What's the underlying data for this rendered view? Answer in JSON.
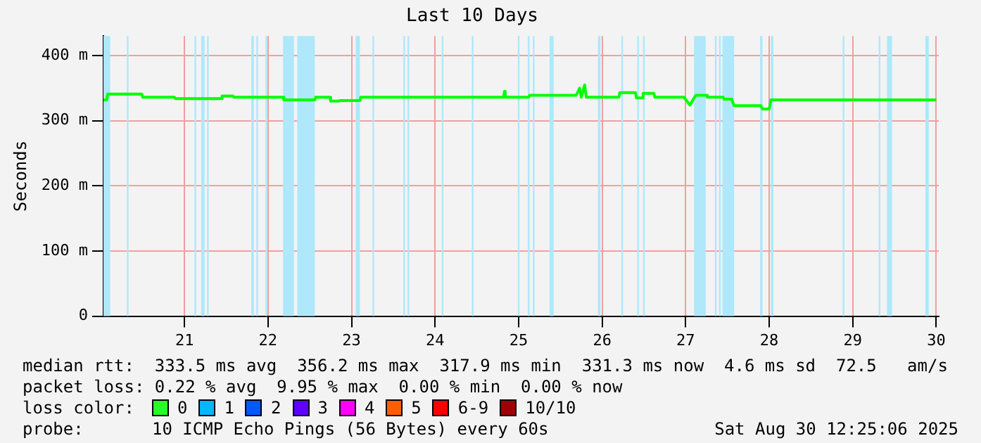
{
  "chart_data": {
    "type": "line",
    "title": "Last 10 Days",
    "ylabel": "Seconds",
    "xlim": [
      20.03,
      30.03
    ],
    "xticks": [
      21,
      22,
      23,
      24,
      25,
      26,
      27,
      28,
      29,
      30
    ],
    "ylim": [
      0,
      430
    ],
    "yticks": [
      0,
      {
        "value": 100,
        "label": "100 m"
      },
      {
        "value": 200,
        "label": "200 m"
      },
      {
        "value": 300,
        "label": "300 m"
      },
      {
        "value": 400,
        "label": "400 m"
      }
    ],
    "grid": true,
    "legend": false,
    "marker": "none",
    "line_style": "solid",
    "series": [
      {
        "color": "#00ff00",
        "x": [
          20.03,
          20.07,
          20.08,
          20.49,
          20.5,
          20.88,
          20.89,
          21.44,
          21.45,
          21.58,
          21.59,
          22.18,
          22.19,
          22.56,
          22.57,
          22.74,
          22.75,
          22.85,
          22.86,
          23.1,
          23.11,
          24.82,
          24.83,
          24.84,
          25.12,
          25.13,
          25.69,
          25.73,
          25.75,
          25.79,
          25.81,
          26.2,
          26.21,
          26.4,
          26.41,
          26.48,
          26.49,
          26.62,
          26.63,
          26.98,
          27.05,
          27.12,
          27.25,
          27.26,
          27.45,
          27.46,
          27.55,
          27.58,
          27.9,
          27.92,
          28.0,
          28.02,
          30.0
        ],
        "values": [
          332,
          332,
          341,
          341,
          336,
          336,
          334,
          334,
          338,
          338,
          336,
          336,
          332,
          332,
          336,
          336,
          330,
          330,
          331,
          331,
          336,
          336,
          345,
          336,
          336,
          339,
          339,
          350,
          336,
          355,
          336,
          336,
          343,
          343,
          335,
          335,
          342,
          342,
          336,
          336,
          324,
          339,
          339,
          336,
          336,
          333,
          333,
          323,
          323,
          318,
          318,
          332,
          332
        ]
      }
    ],
    "bands": [
      {
        "axis": "x",
        "from": 20.03,
        "to": 20.11,
        "color": "#aee8fa"
      },
      {
        "axis": "x",
        "from": 20.31,
        "to": 20.33,
        "color": "#aee8fa"
      },
      {
        "axis": "x",
        "from": 21.12,
        "to": 21.14,
        "color": "#aee8fa"
      },
      {
        "axis": "x",
        "from": 21.2,
        "to": 21.24,
        "color": "#aee8fa"
      },
      {
        "axis": "x",
        "from": 21.27,
        "to": 21.29,
        "color": "#aee8fa"
      },
      {
        "axis": "x",
        "from": 21.8,
        "to": 21.83,
        "color": "#aee8fa"
      },
      {
        "axis": "x",
        "from": 21.86,
        "to": 21.88,
        "color": "#aee8fa"
      },
      {
        "axis": "x",
        "from": 21.97,
        "to": 21.99,
        "color": "#aee8fa"
      },
      {
        "axis": "x",
        "from": 22.18,
        "to": 22.31,
        "color": "#aee8fa"
      },
      {
        "axis": "x",
        "from": 22.35,
        "to": 22.56,
        "color": "#aee8fa"
      },
      {
        "axis": "x",
        "from": 23.05,
        "to": 23.1,
        "color": "#aee8fa"
      },
      {
        "axis": "x",
        "from": 23.25,
        "to": 23.27,
        "color": "#aee8fa"
      },
      {
        "axis": "x",
        "from": 23.62,
        "to": 23.64,
        "color": "#aee8fa"
      },
      {
        "axis": "x",
        "from": 23.67,
        "to": 23.69,
        "color": "#aee8fa"
      },
      {
        "axis": "x",
        "from": 24.08,
        "to": 24.1,
        "color": "#aee8fa"
      },
      {
        "axis": "x",
        "from": 24.44,
        "to": 24.46,
        "color": "#aee8fa"
      },
      {
        "axis": "x",
        "from": 24.99,
        "to": 25.01,
        "color": "#aee8fa"
      },
      {
        "axis": "x",
        "from": 25.11,
        "to": 25.13,
        "color": "#aee8fa"
      },
      {
        "axis": "x",
        "from": 25.17,
        "to": 25.19,
        "color": "#aee8fa"
      },
      {
        "axis": "x",
        "from": 25.37,
        "to": 25.42,
        "color": "#aee8fa"
      },
      {
        "axis": "x",
        "from": 25.95,
        "to": 25.98,
        "color": "#aee8fa"
      },
      {
        "axis": "x",
        "from": 26.23,
        "to": 26.25,
        "color": "#aee8fa"
      },
      {
        "axis": "x",
        "from": 26.42,
        "to": 26.44,
        "color": "#aee8fa"
      },
      {
        "axis": "x",
        "from": 26.49,
        "to": 26.51,
        "color": "#aee8fa"
      },
      {
        "axis": "x",
        "from": 27.1,
        "to": 27.24,
        "color": "#aee8fa"
      },
      {
        "axis": "x",
        "from": 27.35,
        "to": 27.37,
        "color": "#aee8fa"
      },
      {
        "axis": "x",
        "from": 27.4,
        "to": 27.42,
        "color": "#aee8fa"
      },
      {
        "axis": "x",
        "from": 27.44,
        "to": 27.58,
        "color": "#aee8fa"
      },
      {
        "axis": "x",
        "from": 27.89,
        "to": 27.92,
        "color": "#aee8fa"
      },
      {
        "axis": "x",
        "from": 28.02,
        "to": 28.05,
        "color": "#aee8fa"
      },
      {
        "axis": "x",
        "from": 28.88,
        "to": 28.9,
        "color": "#aee8fa"
      },
      {
        "axis": "x",
        "from": 29.31,
        "to": 29.33,
        "color": "#aee8fa"
      },
      {
        "axis": "x",
        "from": 29.41,
        "to": 29.47,
        "color": "#aee8fa"
      },
      {
        "axis": "x",
        "from": 29.87,
        "to": 29.91,
        "color": "#aee8fa"
      }
    ],
    "annotations": [
      "median rtt:  333.5 ms avg  356.2 ms max  317.9 ms min  331.3 ms now  4.6 ms sd  72.5   am/s",
      "packet loss: 0.22 % avg  9.95 % max  0.00 % min  0.00 % now",
      "loss color:",
      "0",
      "1",
      "2",
      "3",
      "4",
      "5",
      "6-9",
      "10/10",
      "probe:",
      "10 ICMP Echo Pings (56 Bytes) every 60s",
      "Sat Aug 30 12:25:06 2025"
    ]
  }
}
